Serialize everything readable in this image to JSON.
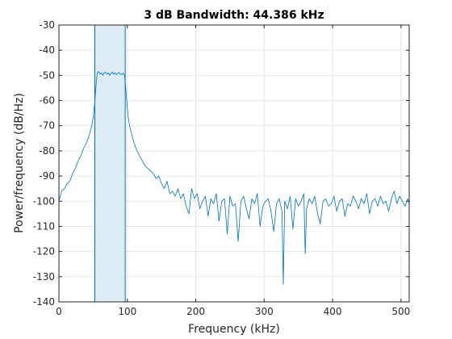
{
  "chart_data": {
    "type": "line",
    "title": "3 dB Bandwidth: 44.386 kHz",
    "xlabel": "Frequency (kHz)",
    "ylabel": "Power/frequency (dB/Hz)",
    "xlim": [
      0,
      512
    ],
    "ylim": [
      -140,
      -30
    ],
    "xticks": [
      0,
      100,
      200,
      300,
      400,
      500
    ],
    "yticks": [
      -140,
      -130,
      -120,
      -110,
      -100,
      -90,
      -80,
      -70,
      -60,
      -50,
      -40,
      -30
    ],
    "grid": true,
    "band": {
      "x_start": 52.5,
      "x_end": 96.9
    },
    "line_color": "#0072BD",
    "band_fill": "#DDEBF5",
    "series": [
      {
        "x": [
          0,
          4,
          8,
          12,
          16,
          20,
          24,
          28,
          32,
          36,
          40,
          44,
          48,
          50,
          52,
          54,
          56,
          58,
          60,
          62,
          64,
          66,
          68,
          70,
          72,
          74,
          76,
          78,
          80,
          82,
          84,
          86,
          88,
          90,
          92,
          94,
          96,
          98,
          100,
          102,
          104,
          106,
          108,
          110,
          114,
          118,
          122,
          126,
          130,
          134,
          138,
          142,
          146,
          150,
          154,
          158,
          162,
          166,
          170,
          174,
          178,
          182,
          186,
          190,
          194,
          198,
          202,
          206,
          210,
          214,
          218,
          222,
          226,
          230,
          234,
          238,
          242,
          246,
          250,
          254,
          258,
          262,
          266,
          270,
          274,
          278,
          282,
          286,
          290,
          294,
          298,
          302,
          306,
          310,
          314,
          318,
          322,
          326,
          328,
          330,
          334,
          338,
          342,
          346,
          350,
          354,
          358,
          360,
          362,
          366,
          370,
          374,
          378,
          382,
          386,
          390,
          394,
          398,
          402,
          406,
          410,
          414,
          418,
          422,
          426,
          430,
          434,
          438,
          442,
          446,
          450,
          454,
          458,
          462,
          466,
          470,
          474,
          478,
          482,
          486,
          490,
          494,
          498,
          502,
          506,
          510,
          512
        ],
        "y": [
          -100,
          -96,
          -95,
          -93,
          -92,
          -89,
          -87,
          -84,
          -82,
          -79,
          -77,
          -74,
          -70,
          -67,
          -62,
          -55,
          -49,
          -48.5,
          -49.5,
          -49,
          -50,
          -49,
          -48.8,
          -49.5,
          -49,
          -50,
          -49.3,
          -48.7,
          -49.6,
          -49,
          -49.8,
          -49.2,
          -48.9,
          -49.5,
          -49.7,
          -49.1,
          -50,
          -56,
          -63,
          -68,
          -71,
          -73,
          -75,
          -77,
          -80,
          -82,
          -84,
          -86,
          -87,
          -88,
          -89,
          -91,
          -90,
          -93,
          -95,
          -92,
          -97,
          -96,
          -98,
          -95,
          -99,
          -97,
          -102,
          -105,
          -95,
          -99,
          -97,
          -103,
          -100,
          -98,
          -106,
          -99,
          -101,
          -97,
          -108,
          -100,
          -99,
          -113,
          -98,
          -102,
          -101,
          -116,
          -100,
          -98,
          -103,
          -107,
          -99,
          -101,
          -97,
          -110,
          -102,
          -100,
          -99,
          -104,
          -112,
          -101,
          -99,
          -104,
          -133,
          -100,
          -103,
          -98,
          -111,
          -99,
          -102,
          -100,
          -97,
          -121,
          -103,
          -99,
          -101,
          -98,
          -105,
          -109,
          -100,
          -99,
          -102,
          -101,
          -98,
          -104,
          -100,
          -99,
          -106,
          -101,
          -102,
          -98,
          -100,
          -103,
          -99,
          -101,
          -97,
          -105,
          -100,
          -99,
          -102,
          -98,
          -101,
          -100,
          -104,
          -99,
          -96,
          -101,
          -98,
          -100,
          -102,
          -99,
          -101
        ]
      }
    ]
  }
}
